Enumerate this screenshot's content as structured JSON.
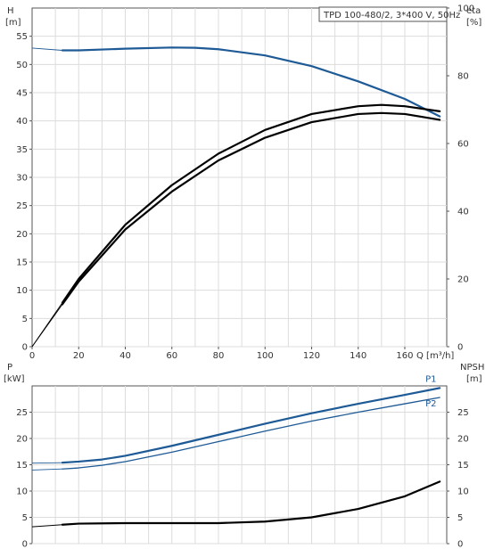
{
  "chart_data": [
    {
      "type": "line",
      "title": "TPD 100-480/2, 3*400 V, 50Hz",
      "xlabel": "Q [m³/h]",
      "x_ticks": [
        "0",
        "20",
        "40",
        "60",
        "80",
        "100",
        "120",
        "140",
        "160"
      ],
      "xlim": [
        0,
        178
      ],
      "grid": true,
      "left_axis": {
        "label_line1": "H",
        "label_line2": "[m]",
        "ylim": [
          0,
          60
        ],
        "ticks": [
          "0",
          "5",
          "10",
          "15",
          "20",
          "25",
          "30",
          "35",
          "40",
          "45",
          "50",
          "55"
        ]
      },
      "right_axis": {
        "label_line1": "eta",
        "label_line2": "[%]",
        "ylim": [
          0,
          100
        ],
        "ticks": [
          "0",
          "20",
          "40",
          "60",
          "80",
          "100"
        ]
      },
      "series": [
        {
          "axis": "left",
          "color": "#1e5a96",
          "x": [
            0,
            13,
            20,
            40,
            60,
            70,
            80,
            100,
            120,
            140,
            160,
            175
          ],
          "y": [
            52.9,
            52.5,
            52.5,
            52.8,
            53.0,
            52.95,
            52.7,
            51.6,
            49.7,
            47.0,
            43.9,
            40.8
          ],
          "operating_from_x": 13
        },
        {
          "axis": "right",
          "color": "#000000",
          "x": [
            0,
            13,
            20,
            40,
            60,
            80,
            100,
            120,
            140,
            150,
            160,
            175
          ],
          "y": [
            0,
            12.5,
            19.2,
            34.6,
            45.8,
            55.0,
            61.7,
            66.3,
            68.7,
            69.0,
            68.7,
            67.0
          ],
          "operating_from_x": 13
        },
        {
          "axis": "right",
          "color": "#000000",
          "x": [
            0,
            13,
            20,
            40,
            60,
            80,
            100,
            120,
            140,
            150,
            160,
            175
          ],
          "y": [
            0,
            13.0,
            20.0,
            36.0,
            47.7,
            57.0,
            64.0,
            68.7,
            71.0,
            71.4,
            71.0,
            69.5
          ],
          "operating_from_x": 13
        }
      ]
    },
    {
      "type": "line",
      "xlim": [
        0,
        178
      ],
      "grid": true,
      "left_axis": {
        "label_line1": "P",
        "label_line2": "[kW]",
        "ylim": [
          0,
          30
        ],
        "ticks": [
          "0",
          "5",
          "10",
          "15",
          "20",
          "25"
        ]
      },
      "right_axis": {
        "label_line1": "NPSH",
        "label_line2": "[m]",
        "ylim": [
          0,
          30
        ],
        "ticks": [
          "0",
          "5",
          "10",
          "15",
          "20",
          "25"
        ]
      },
      "series": [
        {
          "name": "P1",
          "axis": "left",
          "color": "#1e5a96",
          "x": [
            0,
            13,
            20,
            30,
            40,
            60,
            80,
            100,
            120,
            140,
            160,
            175
          ],
          "y": [
            15.3,
            15.4,
            15.6,
            16.0,
            16.7,
            18.6,
            20.7,
            22.8,
            24.8,
            26.6,
            28.3,
            29.6
          ],
          "operating_from_x": 13
        },
        {
          "name": "P2",
          "axis": "left",
          "color": "#1e5a96",
          "x": [
            0,
            13,
            20,
            30,
            40,
            60,
            80,
            100,
            120,
            140,
            160,
            175
          ],
          "y": [
            14.0,
            14.2,
            14.4,
            14.9,
            15.6,
            17.4,
            19.4,
            21.4,
            23.3,
            25.0,
            26.6,
            27.8
          ],
          "operating_from_x": 13
        },
        {
          "axis": "right",
          "color": "#000000",
          "x": [
            0,
            13,
            20,
            40,
            60,
            80,
            100,
            120,
            140,
            160,
            175
          ],
          "y": [
            3.2,
            3.6,
            3.8,
            3.9,
            3.9,
            3.9,
            4.2,
            5.0,
            6.6,
            9.0,
            11.8
          ],
          "operating_from_x": 13
        }
      ]
    }
  ]
}
